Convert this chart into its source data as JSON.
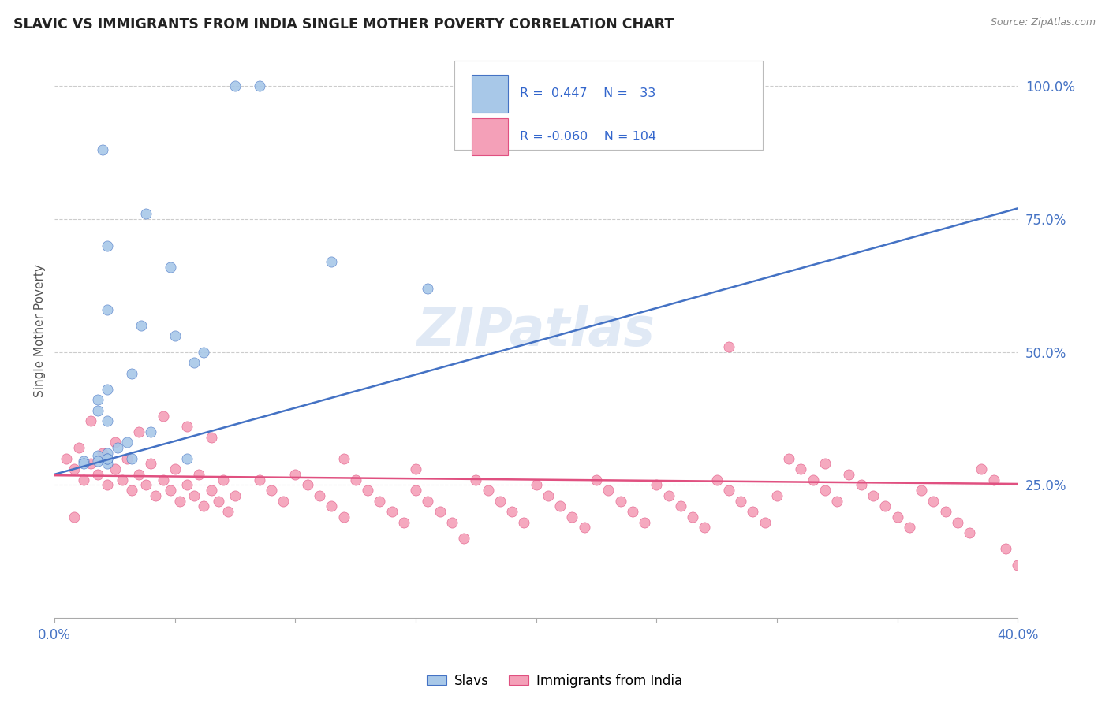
{
  "title": "SLAVIC VS IMMIGRANTS FROM INDIA SINGLE MOTHER POVERTY CORRELATION CHART",
  "source": "Source: ZipAtlas.com",
  "ylabel": "Single Mother Poverty",
  "ylabel_right_ticks": [
    "100.0%",
    "75.0%",
    "50.0%",
    "25.0%"
  ],
  "ylabel_right_vals": [
    1.0,
    0.75,
    0.5,
    0.25
  ],
  "x_min": 0.0,
  "x_max": 0.4,
  "y_min": 0.0,
  "y_max": 1.08,
  "legend_label_1": "Slavs",
  "legend_label_2": "Immigrants from India",
  "R1": 0.447,
  "N1": 33,
  "R2": -0.06,
  "N2": 104,
  "color_slavs": "#A8C8E8",
  "color_india": "#F4A0B8",
  "color_slavs_line": "#4472C4",
  "color_india_line": "#E05080",
  "background_color": "#FFFFFF",
  "grid_color": "#CCCCCC",
  "watermark": "ZIPatlas",
  "slavs_x": [
    0.075,
    0.085,
    0.175,
    0.245,
    0.02,
    0.038,
    0.022,
    0.048,
    0.022,
    0.036,
    0.05,
    0.062,
    0.058,
    0.032,
    0.022,
    0.018,
    0.018,
    0.022,
    0.04,
    0.03,
    0.026,
    0.022,
    0.018,
    0.032,
    0.055,
    0.018,
    0.022,
    0.155,
    0.022,
    0.012,
    0.012,
    0.022,
    0.115
  ],
  "slavs_y": [
    1.0,
    1.0,
    1.0,
    1.0,
    0.88,
    0.76,
    0.7,
    0.66,
    0.58,
    0.55,
    0.53,
    0.5,
    0.48,
    0.46,
    0.43,
    0.41,
    0.39,
    0.37,
    0.35,
    0.33,
    0.32,
    0.31,
    0.305,
    0.3,
    0.3,
    0.295,
    0.29,
    0.62,
    0.3,
    0.295,
    0.29,
    0.3,
    0.67
  ],
  "india_x": [
    0.005,
    0.008,
    0.01,
    0.012,
    0.015,
    0.018,
    0.02,
    0.022,
    0.025,
    0.028,
    0.03,
    0.032,
    0.035,
    0.038,
    0.04,
    0.042,
    0.045,
    0.048,
    0.05,
    0.052,
    0.055,
    0.058,
    0.06,
    0.062,
    0.065,
    0.068,
    0.07,
    0.072,
    0.075,
    0.008,
    0.085,
    0.09,
    0.095,
    0.1,
    0.105,
    0.11,
    0.115,
    0.12,
    0.125,
    0.13,
    0.135,
    0.14,
    0.145,
    0.15,
    0.155,
    0.16,
    0.165,
    0.17,
    0.175,
    0.18,
    0.185,
    0.19,
    0.195,
    0.2,
    0.205,
    0.21,
    0.215,
    0.22,
    0.225,
    0.23,
    0.235,
    0.24,
    0.245,
    0.25,
    0.255,
    0.26,
    0.265,
    0.27,
    0.275,
    0.28,
    0.285,
    0.29,
    0.295,
    0.3,
    0.305,
    0.31,
    0.315,
    0.32,
    0.325,
    0.33,
    0.335,
    0.34,
    0.345,
    0.35,
    0.355,
    0.36,
    0.365,
    0.37,
    0.375,
    0.38,
    0.385,
    0.39,
    0.395,
    0.4,
    0.025,
    0.035,
    0.055,
    0.065,
    0.015,
    0.045,
    0.12,
    0.15,
    0.28,
    0.32
  ],
  "india_y": [
    0.3,
    0.28,
    0.32,
    0.26,
    0.29,
    0.27,
    0.31,
    0.25,
    0.28,
    0.26,
    0.3,
    0.24,
    0.27,
    0.25,
    0.29,
    0.23,
    0.26,
    0.24,
    0.28,
    0.22,
    0.25,
    0.23,
    0.27,
    0.21,
    0.24,
    0.22,
    0.26,
    0.2,
    0.23,
    0.19,
    0.26,
    0.24,
    0.22,
    0.27,
    0.25,
    0.23,
    0.21,
    0.19,
    0.26,
    0.24,
    0.22,
    0.2,
    0.18,
    0.24,
    0.22,
    0.2,
    0.18,
    0.15,
    0.26,
    0.24,
    0.22,
    0.2,
    0.18,
    0.25,
    0.23,
    0.21,
    0.19,
    0.17,
    0.26,
    0.24,
    0.22,
    0.2,
    0.18,
    0.25,
    0.23,
    0.21,
    0.19,
    0.17,
    0.26,
    0.24,
    0.22,
    0.2,
    0.18,
    0.23,
    0.3,
    0.28,
    0.26,
    0.24,
    0.22,
    0.27,
    0.25,
    0.23,
    0.21,
    0.19,
    0.17,
    0.24,
    0.22,
    0.2,
    0.18,
    0.16,
    0.28,
    0.26,
    0.13,
    0.1,
    0.33,
    0.35,
    0.36,
    0.34,
    0.37,
    0.38,
    0.3,
    0.28,
    0.51,
    0.29
  ],
  "slavs_line_x0": 0.0,
  "slavs_line_y0": 0.27,
  "slavs_line_x1": 0.4,
  "slavs_line_y1": 0.77,
  "india_line_x0": 0.0,
  "india_line_y0": 0.268,
  "india_line_x1": 0.4,
  "india_line_y1": 0.252
}
